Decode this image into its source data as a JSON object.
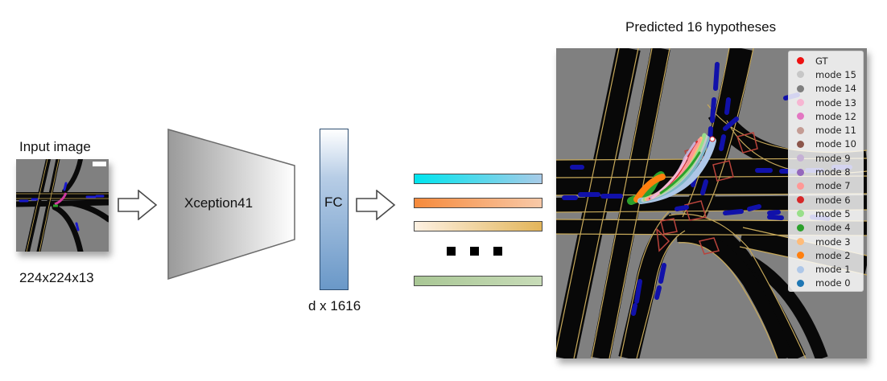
{
  "input": {
    "title": "Input image",
    "dims": "224x224x13"
  },
  "backbone": {
    "label": "Xception41"
  },
  "fc": {
    "label": "FC",
    "dims": "d x 1616"
  },
  "output": {
    "title": "Predicted 16 hypotheses"
  },
  "bars": {
    "colors": [
      [
        "#00e5ee",
        "#a8cbe8"
      ],
      [
        "#f58a3c",
        "#f8c9a8"
      ],
      [
        "#fbeedb",
        "#e3b55a"
      ],
      [
        "#a9c795",
        "#c8dcb8"
      ]
    ]
  },
  "legend": {
    "items": [
      {
        "label": "GT",
        "color": "#ee1111"
      },
      {
        "label": "mode 15",
        "color": "#c7c7c7"
      },
      {
        "label": "mode 14",
        "color": "#7f7f7f"
      },
      {
        "label": "mode 13",
        "color": "#f7b6d2"
      },
      {
        "label": "mode 12",
        "color": "#e377c2"
      },
      {
        "label": "mode 11",
        "color": "#c49c94"
      },
      {
        "label": "mode 10",
        "color": "#8c564b"
      },
      {
        "label": "mode 9",
        "color": "#c5b0d5"
      },
      {
        "label": "mode 8",
        "color": "#9467bd"
      },
      {
        "label": "mode 7",
        "color": "#ff9896"
      },
      {
        "label": "mode 6",
        "color": "#d62728"
      },
      {
        "label": "mode 5",
        "color": "#98df8a"
      },
      {
        "label": "mode 4",
        "color": "#2ca02c"
      },
      {
        "label": "mode 3",
        "color": "#ffbb78"
      },
      {
        "label": "mode 2",
        "color": "#ff7f0e"
      },
      {
        "label": "mode 1",
        "color": "#aec7e8"
      },
      {
        "label": "mode 0",
        "color": "#1f77b4"
      }
    ]
  }
}
